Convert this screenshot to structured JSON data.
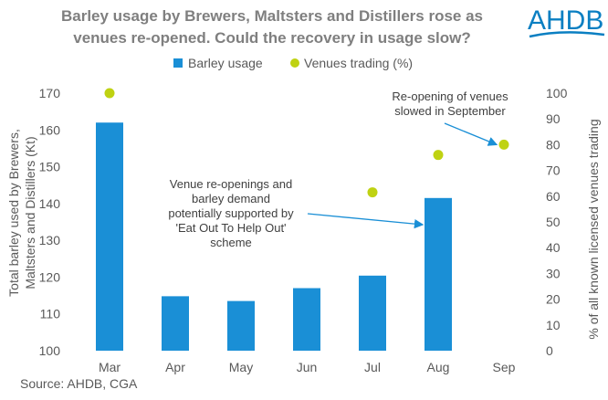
{
  "title_line1": "Barley usage by Brewers, Maltsters and Distillers rose as",
  "title_line2": "venues re-opened. Could the recovery in usage slow?",
  "logo_text": "AHDB",
  "source": "Source: AHDB, CGA",
  "colors": {
    "bar": "#1a8fd6",
    "dot": "#bfd212",
    "arrow": "#1a8fd6",
    "logo": "#0a7fc2"
  },
  "chart_data": {
    "type": "bar",
    "categories": [
      "Mar",
      "Apr",
      "May",
      "Jun",
      "Jul",
      "Aug",
      "Sep"
    ],
    "series": [
      {
        "name": "Barley usage",
        "type": "bar",
        "axis": "left",
        "values": [
          162,
          114.8,
          113.5,
          117,
          120.4,
          141.5,
          null
        ]
      },
      {
        "name": "Venues trading (%)",
        "type": "scatter",
        "axis": "right",
        "values": [
          100,
          null,
          null,
          null,
          61.5,
          76,
          80
        ]
      }
    ],
    "ylabel": "Total barley used by Brewers, Maltsters and Distillers (Kt)",
    "ylabel_line1": "Total barley used by Brewers,",
    "ylabel_line2": "Maltsters and Distillers (Kt)",
    "y2label": "% of all known licensed venues trading",
    "ylim": [
      100,
      170
    ],
    "y2lim": [
      0,
      100
    ],
    "yticks": [
      "100",
      "110",
      "120",
      "130",
      "140",
      "150",
      "160",
      "170"
    ],
    "y2ticks": [
      "0",
      "10",
      "20",
      "30",
      "40",
      "50",
      "60",
      "70",
      "80",
      "90",
      "100"
    ],
    "annotations": [
      {
        "lines": [
          "Re-opening of venues",
          "slowed in September"
        ],
        "target": "Sep"
      },
      {
        "lines": [
          "Venue re-openings and",
          "barley demand",
          "potentially supported by",
          "'Eat Out To Help Out'",
          "scheme"
        ],
        "target": "Aug"
      }
    ]
  }
}
